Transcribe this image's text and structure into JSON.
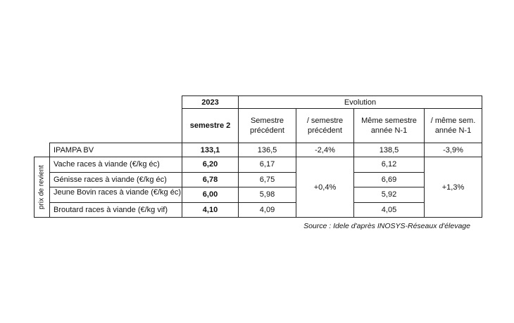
{
  "header": {
    "year": "2023",
    "evolution": "Evolution",
    "columns": [
      [
        "semestre 2"
      ],
      [
        "Semestre",
        "précédent"
      ],
      [
        "/ semestre",
        "précédent"
      ],
      [
        "Même semestre",
        "année N-1"
      ],
      [
        "/ même sem.",
        "année N-1"
      ]
    ]
  },
  "table": {
    "rows": [
      [
        "IPAMPA BV",
        "133,1",
        "136,5",
        "-2,4%",
        "138,5",
        "-3,9%"
      ]
    ]
  },
  "group": {
    "label": "prix de revient",
    "rows": [
      [
        "Vache races à viande (€/kg éc)",
        "6,20",
        "6,17",
        "6,12"
      ],
      [
        "Génisse races à viande (€/kg éc)",
        "6,78",
        "6,75",
        "6,69"
      ],
      [
        "Jeune Bovin races à viande (€/kg éc)",
        "6,00",
        "5,98",
        "5,92"
      ],
      [
        "Broutard races à viande (€/kg vif)",
        "4,10",
        "4,09",
        "4,05"
      ]
    ],
    "change_semestre": "+0,4%",
    "change_annee": "+1,3%"
  },
  "source": "Source : Idele d'après INOSYS-Réseaux d'élevage"
}
